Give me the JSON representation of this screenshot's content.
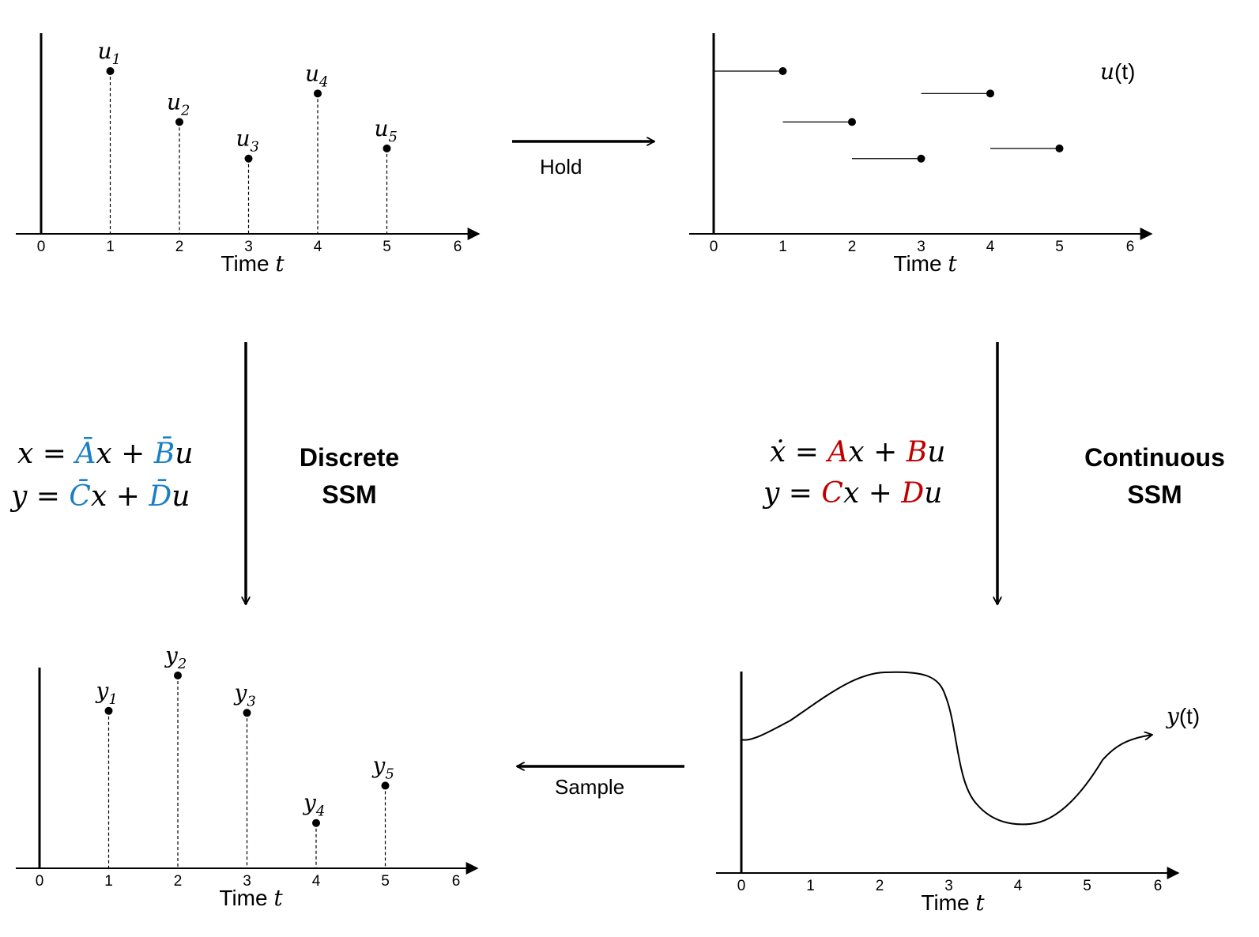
{
  "colors": {
    "discrete_params": "#1a7fc4",
    "continuous_params": "#c00000",
    "ink": "#000000"
  },
  "axis": {
    "ticks": [
      "0",
      "1",
      "2",
      "3",
      "4",
      "5",
      "6"
    ],
    "xlabel_text": "Time ",
    "xlabel_var": "t"
  },
  "input_stems": {
    "points": [
      {
        "base": "u",
        "sub": "1",
        "t": 1,
        "v": 0.8
      },
      {
        "base": "u",
        "sub": "2",
        "t": 2,
        "v": 0.55
      },
      {
        "base": "u",
        "sub": "3",
        "t": 3,
        "v": 0.37
      },
      {
        "base": "u",
        "sub": "4",
        "t": 4,
        "v": 0.69
      },
      {
        "base": "u",
        "sub": "5",
        "t": 5,
        "v": 0.42
      }
    ]
  },
  "held_signal": {
    "label_var": "u",
    "label_rest": "(t)"
  },
  "output_stems": {
    "points": [
      {
        "base": "y",
        "sub": "1",
        "t": 1,
        "v": 0.8
      },
      {
        "base": "y",
        "sub": "2",
        "t": 2,
        "v": 0.98
      },
      {
        "base": "y",
        "sub": "3",
        "t": 3,
        "v": 0.79
      },
      {
        "base": "y",
        "sub": "4",
        "t": 4,
        "v": 0.23
      },
      {
        "base": "y",
        "sub": "5",
        "t": 5,
        "v": 0.42
      }
    ]
  },
  "continuous_output": {
    "label_var": "y",
    "label_rest": "(t)"
  },
  "arrows": {
    "hold": "Hold",
    "sample": "Sample"
  },
  "discrete": {
    "title_line1": "Discrete",
    "title_line2": "SSM"
  },
  "continuous": {
    "title_line1": "Continuous",
    "title_line2": "SSM"
  }
}
